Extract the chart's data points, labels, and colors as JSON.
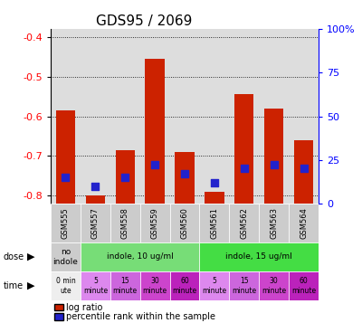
{
  "title": "GDS95 / 2069",
  "categories": [
    "GSM555",
    "GSM557",
    "GSM558",
    "GSM559",
    "GSM560",
    "GSM561",
    "GSM562",
    "GSM563",
    "GSM564"
  ],
  "log_ratio": [
    -0.585,
    -0.8,
    -0.685,
    -0.455,
    -0.69,
    -0.79,
    -0.545,
    -0.58,
    -0.66
  ],
  "percentile": [
    15,
    10,
    15,
    22,
    17,
    12,
    20,
    22,
    20
  ],
  "ylim_left": [
    -0.82,
    -0.38
  ],
  "ylim_right": [
    0,
    100
  ],
  "yticks_left": [
    -0.8,
    -0.7,
    -0.6,
    -0.5,
    -0.4
  ],
  "yticks_right": [
    0,
    25,
    50,
    75,
    100
  ],
  "bar_color": "#cc2200",
  "dot_color": "#2222cc",
  "bar_bottom": -0.82,
  "plot_bg": "#dddddd",
  "dose_labels": [
    "no\nindole",
    "indole, 10 ug/ml",
    "indole, 15 ug/ml"
  ],
  "dose_colors": [
    "#cccccc",
    "#77dd77",
    "#44dd44"
  ],
  "time_labels": [
    "0 min\nute",
    "5\nminute",
    "15\nminute",
    "30\nminute",
    "60\nminute",
    "5\nminute",
    "15\nminute",
    "30\nminute",
    "60\nminute"
  ],
  "time_colors": [
    "#eeeeee",
    "#dd88ee",
    "#cc66dd",
    "#cc44cc",
    "#bb22bb",
    "#dd88ee",
    "#cc66dd",
    "#cc44cc",
    "#bb22bb"
  ],
  "legend_red": "log ratio",
  "legend_blue": "percentile rank within the sample"
}
